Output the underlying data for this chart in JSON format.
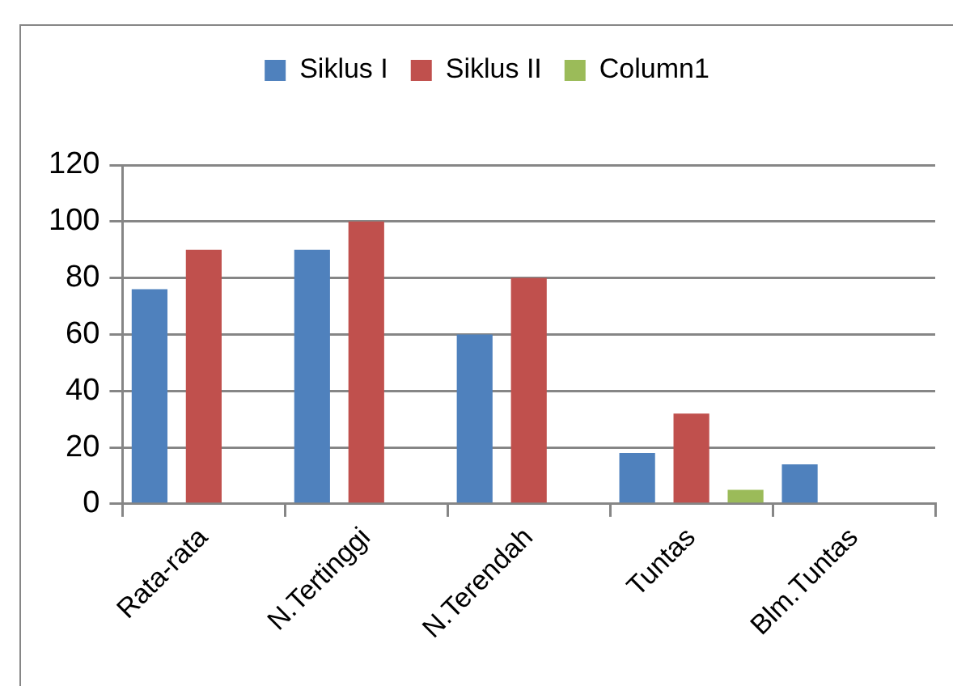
{
  "chart_data": {
    "type": "bar",
    "categories": [
      "Rata-rata",
      "N.Tertinggi",
      "N.Terendah",
      "Tuntas",
      "Blm.Tuntas"
    ],
    "series": [
      {
        "name": "Siklus I",
        "color": "#4f81bd",
        "values": [
          76,
          90,
          60,
          18,
          14
        ]
      },
      {
        "name": "Siklus II",
        "color": "#c0504d",
        "values": [
          90,
          100,
          80,
          32,
          null
        ]
      },
      {
        "name": "Column1",
        "color": "#9bbb59",
        "values": [
          null,
          null,
          null,
          5,
          null
        ]
      }
    ],
    "ylim": [
      0,
      120
    ],
    "yticks": [
      0,
      20,
      40,
      60,
      80,
      100,
      120
    ],
    "grid": "y",
    "legend": "top"
  }
}
